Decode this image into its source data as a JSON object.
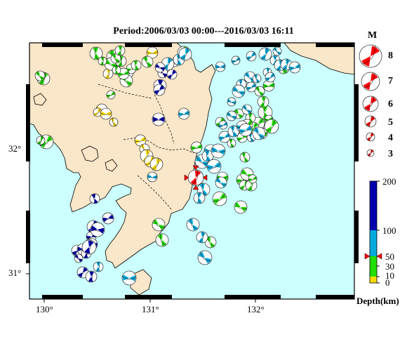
{
  "title": "Period:2006/03/03 00:00---2016/03/03 16:11",
  "lon_labels": [
    "130°",
    "131°",
    "132°"
  ],
  "lat_labels": [
    "32°",
    "31°"
  ],
  "legend": {
    "magnitude_header": "M",
    "magnitudes": [
      "8",
      "7",
      "6",
      "5",
      "4",
      "3"
    ],
    "depth_ticks": [
      "200",
      "100",
      "50",
      "30",
      "10",
      "0"
    ],
    "depth_title": "Depth(km)"
  },
  "colors": {
    "sea": "#ccffff",
    "land": "#fae6c8",
    "shallow": "#ffdd00",
    "mid": "#22dd00",
    "deep": "#00aadd",
    "very_deep": "#0000aa",
    "mainshock": "#ff0000"
  },
  "events": {
    "very_deep": [
      [
        135,
        283
      ],
      [
        154,
        311
      ],
      [
        133,
        323
      ],
      [
        130,
        337
      ],
      [
        139,
        327
      ],
      [
        128,
        346
      ],
      [
        110,
        357
      ],
      [
        118,
        355
      ],
      [
        123,
        361
      ],
      [
        112,
        368
      ],
      [
        131,
        348
      ],
      [
        127,
        352
      ],
      [
        118,
        388
      ],
      [
        130,
        394
      ],
      [
        232,
        104
      ],
      [
        228,
        122
      ],
      [
        227,
        128
      ],
      [
        245,
        106
      ],
      [
        226,
        170
      ],
      [
        228,
        96
      ]
    ],
    "deep": [
      [
        314,
        95
      ],
      [
        336,
        86
      ],
      [
        358,
        80
      ],
      [
        378,
        77
      ],
      [
        392,
        86
      ],
      [
        399,
        93
      ],
      [
        408,
        92
      ],
      [
        420,
        96
      ],
      [
        395,
        73
      ],
      [
        356,
        110
      ],
      [
        344,
        120
      ],
      [
        340,
        130
      ],
      [
        358,
        124
      ],
      [
        366,
        112
      ],
      [
        381,
        103
      ],
      [
        385,
        110
      ],
      [
        330,
        145
      ],
      [
        320,
        195
      ],
      [
        333,
        187
      ],
      [
        345,
        180
      ],
      [
        358,
        196
      ],
      [
        300,
        215
      ],
      [
        288,
        230
      ],
      [
        296,
        222
      ],
      [
        305,
        237
      ],
      [
        315,
        260
      ],
      [
        290,
        270
      ],
      [
        284,
        282
      ],
      [
        275,
        320
      ],
      [
        288,
        338
      ],
      [
        311,
        215
      ],
      [
        350,
        185
      ],
      [
        369,
        190
      ],
      [
        262,
        162
      ],
      [
        292,
        367
      ],
      [
        249,
        89
      ],
      [
        255,
        85
      ],
      [
        239,
        91
      ],
      [
        264,
        77
      ],
      [
        217,
        252
      ],
      [
        140,
        380
      ],
      [
        184,
        396
      ],
      [
        318,
        178
      ],
      [
        330,
        165
      ],
      [
        352,
        156
      ]
    ],
    "mid": [
      [
        378,
        160
      ],
      [
        383,
        170
      ],
      [
        387,
        180
      ],
      [
        373,
        190
      ],
      [
        368,
        176
      ],
      [
        357,
        168
      ],
      [
        361,
        182
      ],
      [
        352,
        178
      ],
      [
        340,
        162
      ],
      [
        345,
        196
      ],
      [
        330,
        204
      ],
      [
        349,
        224
      ],
      [
        353,
        253
      ],
      [
        345,
        256
      ],
      [
        352,
        248
      ],
      [
        348,
        264
      ],
      [
        358,
        264
      ],
      [
        360,
        255
      ],
      [
        343,
        295
      ],
      [
        313,
        283
      ],
      [
        317,
        253
      ],
      [
        300,
        345
      ],
      [
        280,
        210
      ],
      [
        314,
        174
      ],
      [
        62,
        112
      ],
      [
        57,
        108
      ],
      [
        137,
        76
      ],
      [
        162,
        81
      ],
      [
        158,
        91
      ],
      [
        172,
        87
      ],
      [
        183,
        104
      ],
      [
        187,
        98
      ],
      [
        180,
        115
      ],
      [
        194,
        93
      ],
      [
        158,
        135
      ],
      [
        176,
        105
      ],
      [
        166,
        100
      ],
      [
        404,
        97
      ],
      [
        383,
        122
      ],
      [
        370,
        130
      ],
      [
        66,
        202
      ],
      [
        58,
        200
      ],
      [
        226,
        320
      ],
      [
        231,
        342
      ],
      [
        165,
        83
      ],
      [
        171,
        72
      ],
      [
        146,
        87
      ],
      [
        210,
        88
      ],
      [
        262,
        75
      ],
      [
        375,
        145
      ]
    ],
    "shallow": [
      [
        145,
        156
      ],
      [
        139,
        160
      ],
      [
        151,
        162
      ],
      [
        162,
        174
      ],
      [
        200,
        200
      ],
      [
        206,
        212
      ],
      [
        209,
        222
      ],
      [
        214,
        230
      ],
      [
        223,
        234
      ],
      [
        217,
        75
      ],
      [
        154,
        105
      ]
    ]
  },
  "mainshock": [
    279,
    253
  ],
  "legend_beachball_colors": "#ff0000"
}
